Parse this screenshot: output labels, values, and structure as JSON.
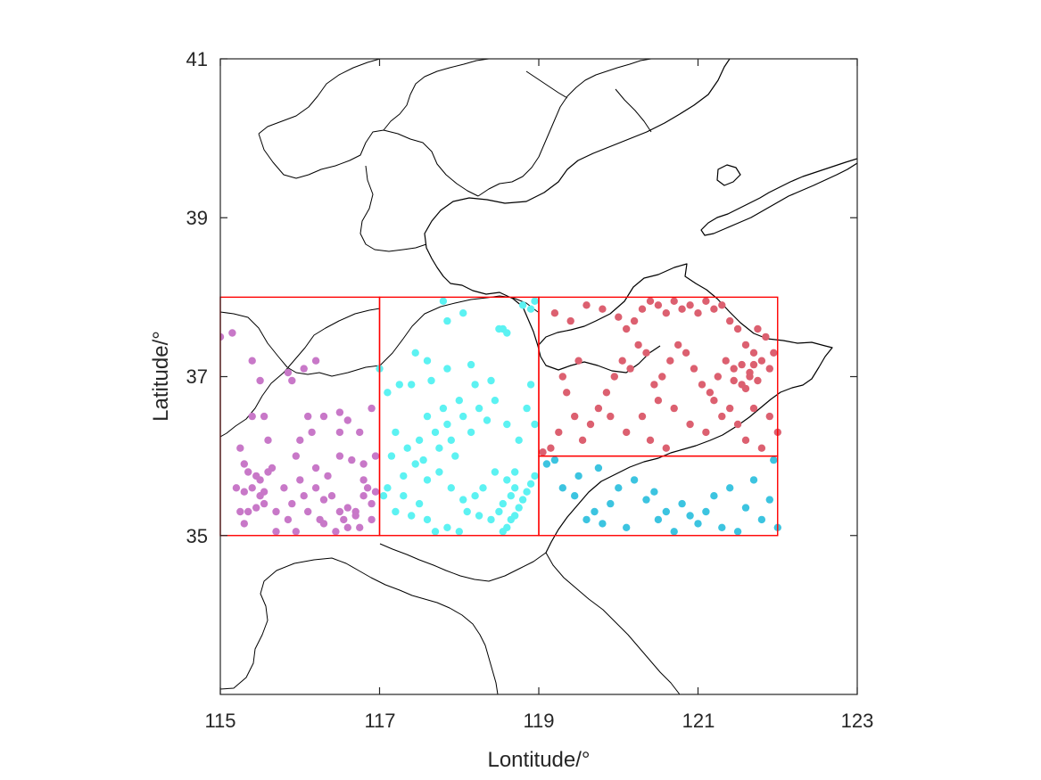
{
  "chart_data": {
    "type": "scatter",
    "xlabel": "Lontitude/°",
    "ylabel": "Latitude/°",
    "xlim": [
      115,
      123
    ],
    "ylim": [
      33,
      41
    ],
    "xticks": [
      "115",
      "117",
      "119",
      "121",
      "123"
    ],
    "yticks": [
      "41",
      "39",
      "37",
      "35"
    ],
    "box_color": "#ff0000",
    "regions": [
      {
        "id": "west",
        "lon": [
          115,
          117
        ],
        "lat": [
          35,
          38
        ],
        "color": "#c878c8"
      },
      {
        "id": "central",
        "lon": [
          117,
          119
        ],
        "lat": [
          35,
          38
        ],
        "color": "#5cf2f2"
      },
      {
        "id": "northeast",
        "lon": [
          119,
          122
        ],
        "lat": [
          36,
          38
        ],
        "color": "#dc6070"
      },
      {
        "id": "southeast",
        "lon": [
          119,
          122
        ],
        "lat": [
          35,
          36
        ],
        "color": "#3cc4e0"
      }
    ],
    "series": [
      {
        "id": "west",
        "color": "#c878c8",
        "points": [
          [
            115.0,
            37.5
          ],
          [
            115.15,
            37.55
          ],
          [
            115.4,
            37.2
          ],
          [
            115.55,
            36.5
          ],
          [
            115.25,
            36.1
          ],
          [
            115.3,
            35.9
          ],
          [
            115.35,
            35.8
          ],
          [
            115.45,
            35.75
          ],
          [
            115.5,
            35.7
          ],
          [
            115.6,
            35.8
          ],
          [
            115.2,
            35.6
          ],
          [
            115.3,
            35.55
          ],
          [
            115.4,
            35.6
          ],
          [
            115.5,
            35.5
          ],
          [
            115.25,
            35.3
          ],
          [
            115.35,
            35.3
          ],
          [
            115.45,
            35.35
          ],
          [
            115.55,
            35.4
          ],
          [
            115.3,
            35.15
          ],
          [
            115.65,
            35.85
          ],
          [
            115.8,
            35.6
          ],
          [
            115.7,
            35.3
          ],
          [
            115.9,
            35.4
          ],
          [
            115.85,
            35.2
          ],
          [
            116.0,
            35.7
          ],
          [
            116.05,
            35.5
          ],
          [
            116.2,
            35.6
          ],
          [
            116.3,
            35.45
          ],
          [
            116.1,
            35.3
          ],
          [
            116.25,
            35.2
          ],
          [
            116.4,
            35.5
          ],
          [
            116.5,
            35.3
          ],
          [
            116.55,
            35.2
          ],
          [
            116.6,
            35.35
          ],
          [
            116.7,
            35.25
          ],
          [
            116.75,
            35.1
          ],
          [
            116.8,
            35.5
          ],
          [
            116.85,
            35.6
          ],
          [
            116.9,
            35.4
          ],
          [
            116.9,
            35.2
          ],
          [
            116.95,
            35.55
          ],
          [
            116.8,
            35.7
          ],
          [
            116.7,
            35.3
          ],
          [
            116.6,
            35.1
          ],
          [
            116.45,
            35.05
          ],
          [
            116.3,
            35.15
          ],
          [
            115.95,
            35.05
          ],
          [
            115.7,
            35.05
          ],
          [
            116.0,
            36.2
          ],
          [
            116.15,
            36.3
          ],
          [
            116.3,
            36.5
          ],
          [
            116.5,
            36.55
          ],
          [
            116.6,
            36.45
          ],
          [
            116.75,
            36.3
          ],
          [
            116.9,
            36.6
          ],
          [
            116.95,
            36.0
          ],
          [
            116.8,
            35.9
          ],
          [
            116.5,
            36.0
          ],
          [
            116.2,
            35.85
          ],
          [
            115.95,
            36.0
          ],
          [
            115.6,
            36.2
          ],
          [
            115.4,
            36.5
          ],
          [
            115.9,
            36.95
          ],
          [
            116.05,
            37.1
          ],
          [
            116.2,
            37.2
          ],
          [
            115.85,
            37.05
          ],
          [
            115.5,
            36.95
          ],
          [
            116.5,
            36.3
          ],
          [
            116.1,
            36.5
          ],
          [
            115.55,
            35.55
          ],
          [
            116.35,
            35.75
          ],
          [
            116.65,
            35.95
          ]
        ]
      },
      {
        "id": "central",
        "color": "#5cf2f2",
        "points": [
          [
            117.0,
            37.1
          ],
          [
            117.05,
            35.5
          ],
          [
            117.1,
            35.6
          ],
          [
            117.2,
            35.3
          ],
          [
            117.3,
            35.5
          ],
          [
            117.4,
            35.25
          ],
          [
            117.5,
            35.4
          ],
          [
            117.6,
            35.2
          ],
          [
            117.7,
            35.05
          ],
          [
            117.85,
            35.1
          ],
          [
            118.0,
            35.05
          ],
          [
            118.1,
            35.3
          ],
          [
            118.25,
            35.25
          ],
          [
            118.4,
            35.2
          ],
          [
            118.5,
            35.3
          ],
          [
            118.55,
            35.05
          ],
          [
            118.6,
            35.1
          ],
          [
            118.65,
            35.2
          ],
          [
            118.7,
            35.25
          ],
          [
            118.75,
            35.35
          ],
          [
            118.8,
            35.45
          ],
          [
            118.85,
            35.55
          ],
          [
            118.9,
            35.65
          ],
          [
            118.95,
            35.75
          ],
          [
            118.65,
            35.5
          ],
          [
            118.7,
            35.6
          ],
          [
            118.55,
            35.4
          ],
          [
            118.6,
            35.7
          ],
          [
            118.45,
            35.8
          ],
          [
            118.3,
            35.6
          ],
          [
            118.2,
            35.5
          ],
          [
            118.05,
            35.45
          ],
          [
            117.9,
            35.6
          ],
          [
            117.75,
            35.8
          ],
          [
            117.6,
            35.7
          ],
          [
            117.45,
            35.9
          ],
          [
            117.3,
            35.75
          ],
          [
            117.15,
            36.0
          ],
          [
            117.2,
            36.3
          ],
          [
            117.35,
            36.1
          ],
          [
            117.5,
            36.2
          ],
          [
            117.6,
            36.5
          ],
          [
            117.7,
            36.3
          ],
          [
            117.75,
            36.1
          ],
          [
            117.8,
            36.6
          ],
          [
            117.85,
            36.4
          ],
          [
            117.9,
            36.2
          ],
          [
            117.95,
            36.0
          ],
          [
            118.0,
            36.7
          ],
          [
            118.05,
            36.5
          ],
          [
            118.15,
            36.3
          ],
          [
            118.25,
            36.6
          ],
          [
            118.35,
            36.45
          ],
          [
            118.45,
            36.7
          ],
          [
            118.6,
            36.4
          ],
          [
            118.75,
            36.2
          ],
          [
            118.85,
            36.6
          ],
          [
            118.9,
            36.9
          ],
          [
            118.95,
            36.4
          ],
          [
            117.1,
            36.8
          ],
          [
            117.25,
            36.9
          ],
          [
            117.45,
            37.3
          ],
          [
            117.6,
            37.2
          ],
          [
            117.85,
            37.1
          ],
          [
            118.15,
            37.15
          ],
          [
            118.5,
            37.6
          ],
          [
            118.6,
            37.55
          ],
          [
            118.55,
            37.6
          ],
          [
            118.8,
            37.9
          ],
          [
            118.9,
            37.85
          ],
          [
            118.95,
            37.95
          ],
          [
            118.05,
            37.8
          ],
          [
            117.8,
            37.95
          ],
          [
            117.85,
            37.7
          ],
          [
            117.4,
            36.9
          ],
          [
            117.65,
            36.95
          ],
          [
            118.2,
            36.9
          ],
          [
            118.4,
            36.95
          ],
          [
            117.55,
            35.95
          ],
          [
            118.7,
            35.8
          ]
        ]
      },
      {
        "id": "northeast",
        "color": "#dc6070",
        "points": [
          [
            119.2,
            37.8
          ],
          [
            119.4,
            37.7
          ],
          [
            119.6,
            37.9
          ],
          [
            119.8,
            37.85
          ],
          [
            120.0,
            37.75
          ],
          [
            120.1,
            37.6
          ],
          [
            120.2,
            37.7
          ],
          [
            120.3,
            37.85
          ],
          [
            120.4,
            37.95
          ],
          [
            120.5,
            37.9
          ],
          [
            120.6,
            37.8
          ],
          [
            120.7,
            37.95
          ],
          [
            120.8,
            37.85
          ],
          [
            120.9,
            37.9
          ],
          [
            121.0,
            37.8
          ],
          [
            121.1,
            37.95
          ],
          [
            121.2,
            37.85
          ],
          [
            121.3,
            37.9
          ],
          [
            121.4,
            37.7
          ],
          [
            121.5,
            37.6
          ],
          [
            121.6,
            37.4
          ],
          [
            121.7,
            37.3
          ],
          [
            121.8,
            37.2
          ],
          [
            121.9,
            37.1
          ],
          [
            121.95,
            37.3
          ],
          [
            121.85,
            37.5
          ],
          [
            121.75,
            37.6
          ],
          [
            121.65,
            37.0
          ],
          [
            121.55,
            36.9
          ],
          [
            121.45,
            37.1
          ],
          [
            121.35,
            37.2
          ],
          [
            121.25,
            37.0
          ],
          [
            121.15,
            36.8
          ],
          [
            121.05,
            36.9
          ],
          [
            120.95,
            37.1
          ],
          [
            120.85,
            37.3
          ],
          [
            120.75,
            37.4
          ],
          [
            120.65,
            37.2
          ],
          [
            120.55,
            37.0
          ],
          [
            120.45,
            36.9
          ],
          [
            120.35,
            37.3
          ],
          [
            120.25,
            37.4
          ],
          [
            120.15,
            37.1
          ],
          [
            120.05,
            37.2
          ],
          [
            119.95,
            37.0
          ],
          [
            119.85,
            36.8
          ],
          [
            119.75,
            36.6
          ],
          [
            119.65,
            36.4
          ],
          [
            119.55,
            36.2
          ],
          [
            119.45,
            36.5
          ],
          [
            119.35,
            36.8
          ],
          [
            119.25,
            36.3
          ],
          [
            119.15,
            36.1
          ],
          [
            119.05,
            36.05
          ],
          [
            119.3,
            37.0
          ],
          [
            119.5,
            37.2
          ],
          [
            120.1,
            36.3
          ],
          [
            120.3,
            36.5
          ],
          [
            120.5,
            36.7
          ],
          [
            120.7,
            36.6
          ],
          [
            120.9,
            36.4
          ],
          [
            121.1,
            36.3
          ],
          [
            121.3,
            36.5
          ],
          [
            121.5,
            36.4
          ],
          [
            121.7,
            36.6
          ],
          [
            121.9,
            36.5
          ],
          [
            122.0,
            36.3
          ],
          [
            121.8,
            36.1
          ],
          [
            121.6,
            36.2
          ],
          [
            121.4,
            36.6
          ],
          [
            121.2,
            36.7
          ],
          [
            120.6,
            36.1
          ],
          [
            120.4,
            36.2
          ],
          [
            119.9,
            36.5
          ],
          [
            121.65,
            37.05
          ],
          [
            121.55,
            37.15
          ],
          [
            121.75,
            36.95
          ],
          [
            121.45,
            36.95
          ],
          [
            121.6,
            36.85
          ],
          [
            121.7,
            37.15
          ]
        ]
      },
      {
        "id": "southeast",
        "color": "#3cc4e0",
        "points": [
          [
            119.1,
            35.9
          ],
          [
            119.2,
            35.95
          ],
          [
            119.3,
            35.6
          ],
          [
            119.45,
            35.5
          ],
          [
            119.6,
            35.2
          ],
          [
            119.7,
            35.3
          ],
          [
            119.8,
            35.15
          ],
          [
            119.9,
            35.4
          ],
          [
            120.0,
            35.6
          ],
          [
            120.1,
            35.1
          ],
          [
            120.2,
            35.7
          ],
          [
            120.35,
            35.45
          ],
          [
            120.45,
            35.55
          ],
          [
            120.5,
            35.2
          ],
          [
            120.6,
            35.3
          ],
          [
            120.7,
            35.05
          ],
          [
            120.8,
            35.4
          ],
          [
            120.9,
            35.25
          ],
          [
            121.0,
            35.15
          ],
          [
            121.1,
            35.3
          ],
          [
            121.2,
            35.5
          ],
          [
            121.3,
            35.1
          ],
          [
            121.4,
            35.6
          ],
          [
            121.5,
            35.05
          ],
          [
            121.6,
            35.35
          ],
          [
            121.7,
            35.7
          ],
          [
            121.8,
            35.2
          ],
          [
            121.9,
            35.45
          ],
          [
            121.95,
            35.95
          ],
          [
            122.0,
            35.1
          ],
          [
            119.5,
            35.75
          ],
          [
            119.75,
            35.85
          ]
        ]
      }
    ]
  }
}
